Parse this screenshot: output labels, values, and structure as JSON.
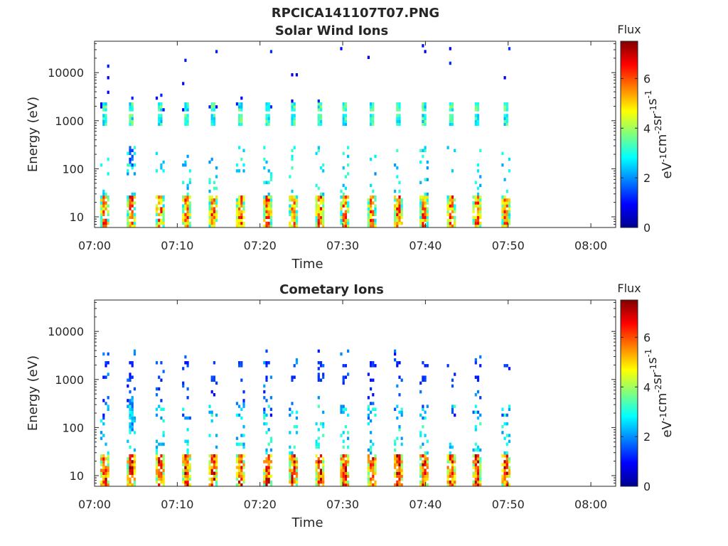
{
  "figure": {
    "title": "RPCICA141107T07.PNG"
  },
  "colors": {
    "axis": "#262626",
    "background": "#ffffff",
    "colormap": "jet"
  },
  "chart_data": [
    {
      "type": "heatmap",
      "title": "Solar Wind Ions",
      "xlabel": "Time",
      "ylabel": "Energy (eV)",
      "x_ticks": [
        "07:00",
        "07:10",
        "07:20",
        "07:30",
        "07:40",
        "07:50",
        "08:00"
      ],
      "x_range_minutes": [
        0,
        63
      ],
      "y_scale": "log",
      "y_ticks": [
        10,
        100,
        1000,
        10000
      ],
      "y_tick_labels": [
        "10",
        "100",
        "1000",
        "10000"
      ],
      "y_range": [
        6,
        45000
      ],
      "colorbar": {
        "label": "Flux",
        "units": "eV-1cm-2sr-1s-1",
        "range": [
          0,
          7.5
        ],
        "ticks": [
          "0",
          "2",
          "4",
          "6"
        ]
      },
      "scan_times_minutes": [
        1.2,
        4.4,
        7.9,
        11.1,
        14.3,
        17.6,
        20.9,
        24.0,
        27.2,
        30.2,
        33.5,
        36.7,
        39.8,
        43.1,
        46.2,
        49.7
      ],
      "features": [
        {
          "name": "solar wind beam (upper)",
          "energy_eV": 2000,
          "flux": 3
        },
        {
          "name": "solar wind beam (lower)",
          "energy_eV": 1000,
          "flux": 3.5
        },
        {
          "name": "low-energy ions",
          "energy_eV": 10,
          "flux": 5.5
        }
      ],
      "grid": false,
      "legend": "none"
    },
    {
      "type": "heatmap",
      "title": "Cometary Ions",
      "xlabel": "Time",
      "ylabel": "Energy (eV)",
      "x_ticks": [
        "07:00",
        "07:10",
        "07:20",
        "07:30",
        "07:40",
        "07:50",
        "08:00"
      ],
      "x_range_minutes": [
        0,
        63
      ],
      "y_scale": "log",
      "y_ticks": [
        10,
        100,
        1000,
        10000
      ],
      "y_tick_labels": [
        "10",
        "100",
        "1000",
        "10000"
      ],
      "y_range": [
        6,
        45000
      ],
      "colorbar": {
        "label": "Flux",
        "units": "eV-1cm-2sr-1s-1",
        "range": [
          0,
          7.5
        ],
        "ticks": [
          "0",
          "2",
          "4",
          "6"
        ]
      },
      "scan_times_minutes": [
        1.2,
        4.4,
        7.9,
        11.1,
        14.3,
        17.6,
        20.9,
        24.0,
        27.2,
        30.2,
        33.5,
        36.7,
        39.8,
        43.1,
        46.2,
        49.7
      ],
      "features": [
        {
          "name": "weak solar wind signal",
          "energy_eV": 1800,
          "flux": 1.5
        },
        {
          "name": "low-energy cometary ions",
          "energy_eV": 10,
          "flux": 6
        }
      ],
      "grid": false,
      "legend": "none"
    }
  ]
}
